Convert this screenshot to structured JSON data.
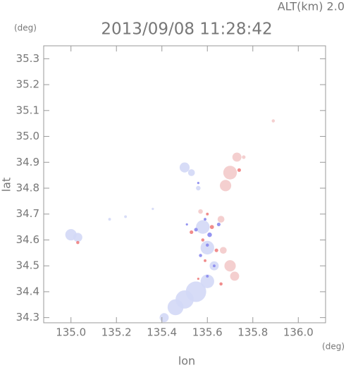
{
  "chart_data": {
    "type": "scatter",
    "title": "2013/09/08 11:28:42",
    "subtitle": "ALT(km) 2.0",
    "y_unit": "(deg)",
    "x_unit": "(deg)",
    "xlabel": "lon",
    "ylabel": "lat",
    "xlim": [
      134.88,
      136.12
    ],
    "ylim": [
      34.28,
      35.35
    ],
    "xticks": [
      {
        "value": 135,
        "label": "135.0"
      },
      135.2,
      135.4,
      135.6,
      135.8,
      {
        "value": 136,
        "label": "136.0"
      }
    ],
    "yticks": [
      34.3,
      34.4,
      34.5,
      34.6,
      34.7,
      34.8,
      34.9,
      {
        "value": 35,
        "label": "35.0"
      },
      35.1,
      35.2,
      35.3
    ],
    "series": [
      {
        "color": "#d3d8f6",
        "x": [
          135.0,
          135.03,
          135.17,
          135.24,
          135.5,
          135.53,
          135.56,
          135.58,
          135.6,
          135.63,
          135.55,
          135.5,
          135.46,
          135.41,
          135.6,
          135.36
        ],
        "y": [
          34.62,
          34.61,
          34.68,
          34.69,
          34.88,
          34.86,
          34.8,
          34.65,
          34.57,
          34.5,
          34.4,
          34.37,
          34.34,
          34.3,
          34.44,
          34.72
        ],
        "r": [
          0.025,
          0.02,
          0.006,
          0.006,
          0.022,
          0.015,
          0.01,
          0.03,
          0.03,
          0.02,
          0.045,
          0.04,
          0.035,
          0.02,
          0.03,
          0.005
        ]
      },
      {
        "color": "#f3caca",
        "x": [
          135.7,
          135.68,
          135.73,
          135.89,
          135.66,
          135.7,
          135.72,
          135.67,
          135.57,
          135.76
        ],
        "y": [
          34.86,
          34.81,
          34.92,
          35.06,
          34.68,
          34.5,
          34.46,
          34.56,
          34.71,
          34.92
        ],
        "r": [
          0.03,
          0.025,
          0.02,
          0.007,
          0.015,
          0.025,
          0.02,
          0.015,
          0.01,
          0.008
        ]
      },
      {
        "color": "#8888ee",
        "x": [
          135.55,
          135.61,
          135.65,
          135.57,
          135.63,
          135.51,
          135.56,
          135.6,
          135.6,
          135.59
        ],
        "y": [
          34.64,
          34.62,
          34.66,
          34.54,
          34.5,
          34.66,
          34.82,
          34.58,
          34.46,
          34.68
        ],
        "r": [
          0.008,
          0.01,
          0.008,
          0.007,
          0.006,
          0.005,
          0.005,
          0.007,
          0.006,
          0.006
        ]
      },
      {
        "color": "#ee8080",
        "x": [
          135.53,
          135.62,
          135.58,
          135.64,
          135.59,
          135.03,
          135.66,
          135.74,
          135.6,
          135.56
        ],
        "y": [
          34.63,
          34.65,
          34.6,
          34.56,
          34.52,
          34.59,
          34.43,
          34.87,
          34.7,
          34.45
        ],
        "r": [
          0.008,
          0.009,
          0.007,
          0.008,
          0.006,
          0.007,
          0.007,
          0.008,
          0.006,
          0.005
        ]
      }
    ]
  }
}
